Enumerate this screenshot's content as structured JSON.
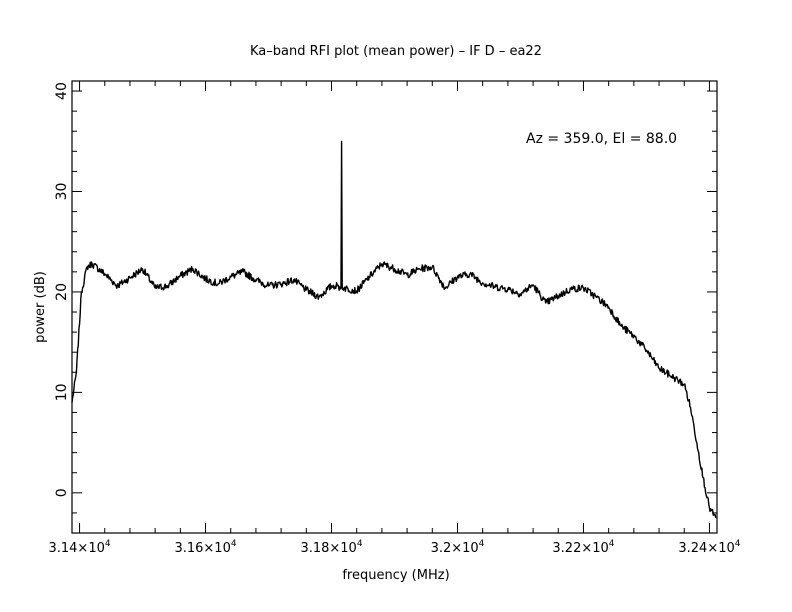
{
  "chart_data": {
    "type": "line",
    "title": "Ka–band RFI plot (mean power) – IF D – ea22",
    "xlabel": "frequency (MHz)",
    "ylabel": "power (dB)",
    "annotation": "Az = 359.0, El = 88.0",
    "xlim": [
      31388,
      32412
    ],
    "ylim": [
      -4,
      41
    ],
    "x_ticks": [
      31400,
      31600,
      31800,
      32000,
      32200,
      32400
    ],
    "x_tick_labels": [
      {
        "mantissa": "3.14×10",
        "exp": "4"
      },
      {
        "mantissa": "3.16×10",
        "exp": "4"
      },
      {
        "mantissa": "3.18×10",
        "exp": "4"
      },
      {
        "mantissa": "3.2×10",
        "exp": "4"
      },
      {
        "mantissa": "3.22×10",
        "exp": "4"
      },
      {
        "mantissa": "3.24×10",
        "exp": "4"
      }
    ],
    "y_ticks": [
      0,
      10,
      20,
      30,
      40
    ],
    "y_tick_labels": [
      "0",
      "10",
      "20",
      "30",
      "40"
    ],
    "grid": false,
    "series": [
      {
        "color": "#000000",
        "x": [
          31388,
          31395,
          31403,
          31412,
          31420,
          31440,
          31460,
          31480,
          31500,
          31520,
          31540,
          31560,
          31580,
          31600,
          31620,
          31640,
          31660,
          31680,
          31700,
          31720,
          31740,
          31760,
          31780,
          31800,
          31810,
          31815,
          31816,
          31817,
          31820,
          31840,
          31860,
          31880,
          31900,
          31920,
          31940,
          31960,
          31980,
          32000,
          32020,
          32040,
          32060,
          32080,
          32100,
          32120,
          32140,
          32160,
          32180,
          32200,
          32220,
          32240,
          32260,
          32280,
          32300,
          32320,
          32340,
          32360,
          32370,
          32380,
          32390,
          32400,
          32410
        ],
        "y": [
          9,
          12,
          20,
          22.5,
          22.8,
          21.8,
          20.6,
          21.4,
          22.3,
          20.4,
          20.6,
          21.6,
          22.3,
          21.3,
          20.8,
          21.5,
          22.0,
          21.2,
          20.6,
          20.8,
          21.2,
          20.2,
          19.5,
          20.6,
          20.6,
          20.3,
          35,
          20.5,
          20.4,
          20.1,
          21.5,
          22.8,
          22.3,
          21.7,
          22.3,
          22.5,
          20.4,
          21.5,
          21.8,
          20.9,
          20.5,
          20.3,
          19.8,
          20.7,
          18.9,
          19.6,
          20.3,
          20.4,
          19.5,
          18.5,
          16.6,
          15.6,
          14.2,
          12.4,
          11.6,
          10.8,
          8.5,
          5.0,
          1.5,
          -1.5,
          -2.5
        ]
      }
    ]
  }
}
